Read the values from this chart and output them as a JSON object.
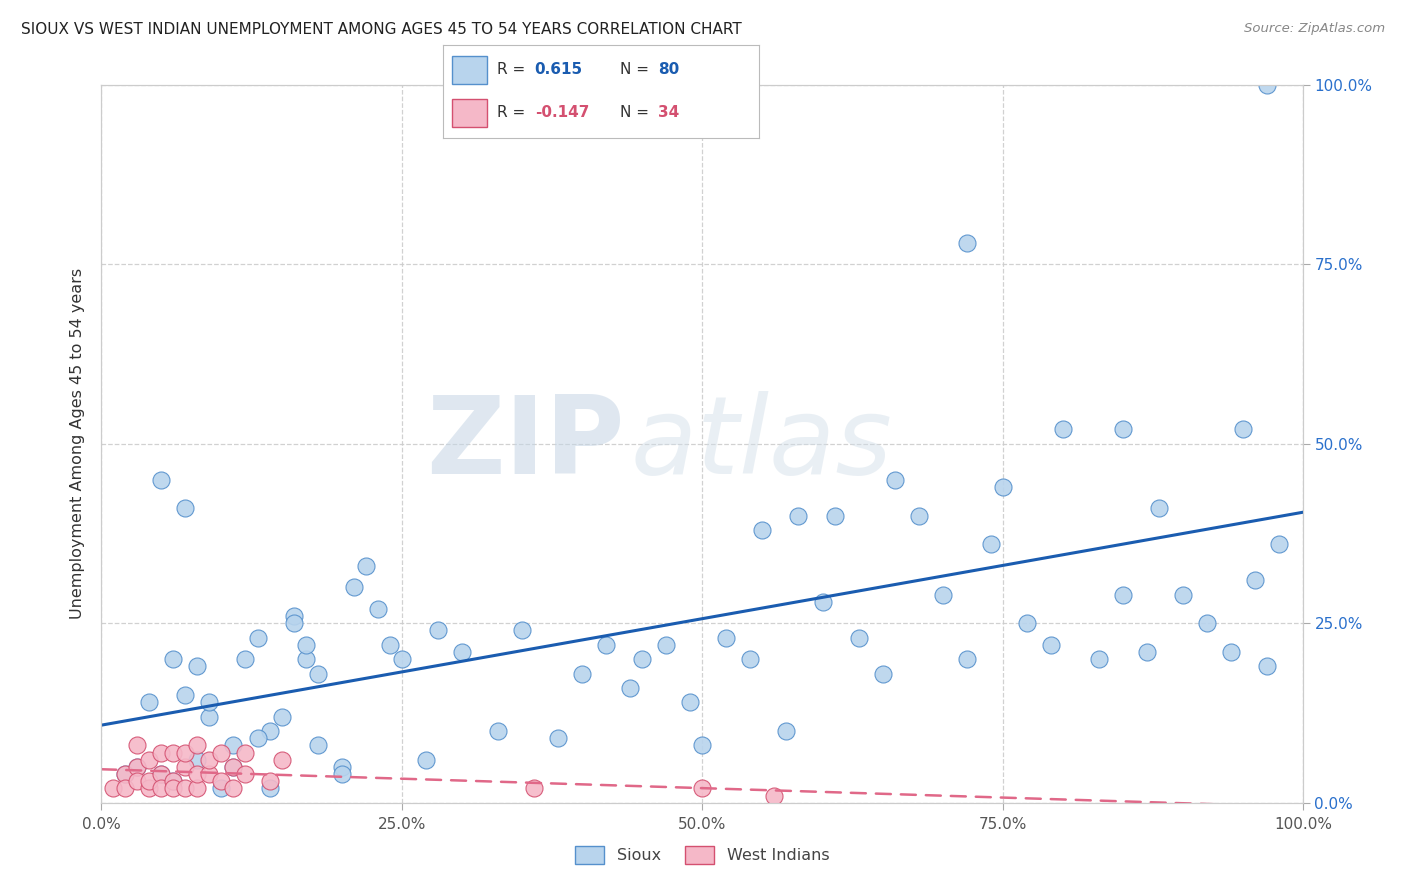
{
  "title": "SIOUX VS WEST INDIAN UNEMPLOYMENT AMONG AGES 45 TO 54 YEARS CORRELATION CHART",
  "source": "Source: ZipAtlas.com",
  "ylabel": "Unemployment Among Ages 45 to 54 years",
  "xlim": [
    0.0,
    1.0
  ],
  "ylim": [
    0.0,
    1.0
  ],
  "xticks": [
    0.0,
    0.25,
    0.5,
    0.75,
    1.0
  ],
  "yticks": [
    0.0,
    0.25,
    0.5,
    0.75,
    1.0
  ],
  "xticklabels": [
    "0.0%",
    "25.0%",
    "50.0%",
    "75.0%",
    "100.0%"
  ],
  "right_yticklabels": [
    "0.0%",
    "25.0%",
    "50.0%",
    "75.0%",
    "100.0%"
  ],
  "sioux_color": "#b8d4ed",
  "sioux_edge_color": "#5590cc",
  "west_indian_color": "#f5b8c8",
  "west_indian_edge_color": "#d45070",
  "sioux_line_color": "#1a5cb0",
  "west_indian_line_color": "#e06888",
  "legend_sioux_R": "0.615",
  "legend_sioux_N": "80",
  "legend_wi_R": "-0.147",
  "legend_wi_N": "34",
  "background_color": "#ffffff",
  "grid_color": "#cccccc",
  "title_color": "#222222",
  "right_tick_color": "#2a70cc",
  "sioux_x": [
    0.97,
    0.05,
    0.07,
    0.09,
    0.11,
    0.13,
    0.14,
    0.16,
    0.17,
    0.18,
    0.2,
    0.21,
    0.24,
    0.25,
    0.27,
    0.28,
    0.3,
    0.33,
    0.35,
    0.38,
    0.4,
    0.42,
    0.44,
    0.45,
    0.47,
    0.49,
    0.5,
    0.52,
    0.54,
    0.55,
    0.57,
    0.58,
    0.6,
    0.61,
    0.63,
    0.65,
    0.66,
    0.68,
    0.7,
    0.72,
    0.74,
    0.75,
    0.77,
    0.79,
    0.8,
    0.83,
    0.85,
    0.87,
    0.88,
    0.9,
    0.92,
    0.94,
    0.96,
    0.97,
    0.03,
    0.05,
    0.06,
    0.07,
    0.08,
    0.09,
    0.1,
    0.11,
    0.12,
    0.13,
    0.14,
    0.15,
    0.16,
    0.17,
    0.18,
    0.02,
    0.04,
    0.06,
    0.08,
    0.22,
    0.23,
    0.2,
    0.72,
    0.85,
    0.95,
    0.98
  ],
  "sioux_y": [
    1.0,
    0.45,
    0.41,
    0.12,
    0.08,
    0.23,
    0.1,
    0.26,
    0.2,
    0.18,
    0.05,
    0.3,
    0.22,
    0.2,
    0.06,
    0.24,
    0.21,
    0.1,
    0.24,
    0.09,
    0.18,
    0.22,
    0.16,
    0.2,
    0.22,
    0.14,
    0.08,
    0.23,
    0.2,
    0.38,
    0.1,
    0.4,
    0.28,
    0.4,
    0.23,
    0.18,
    0.45,
    0.4,
    0.29,
    0.2,
    0.36,
    0.44,
    0.25,
    0.22,
    0.52,
    0.2,
    0.29,
    0.21,
    0.41,
    0.29,
    0.25,
    0.21,
    0.31,
    0.19,
    0.05,
    0.04,
    0.2,
    0.15,
    0.06,
    0.14,
    0.02,
    0.05,
    0.2,
    0.09,
    0.02,
    0.12,
    0.25,
    0.22,
    0.08,
    0.04,
    0.14,
    0.03,
    0.19,
    0.33,
    0.27,
    0.04,
    0.78,
    0.52,
    0.52,
    0.36
  ],
  "west_indian_x": [
    0.01,
    0.02,
    0.02,
    0.03,
    0.03,
    0.03,
    0.04,
    0.04,
    0.04,
    0.05,
    0.05,
    0.05,
    0.06,
    0.06,
    0.06,
    0.07,
    0.07,
    0.07,
    0.08,
    0.08,
    0.08,
    0.09,
    0.09,
    0.1,
    0.1,
    0.11,
    0.11,
    0.12,
    0.12,
    0.14,
    0.15,
    0.36,
    0.5,
    0.56
  ],
  "west_indian_y": [
    0.02,
    0.04,
    0.02,
    0.05,
    0.03,
    0.08,
    0.02,
    0.06,
    0.03,
    0.04,
    0.07,
    0.02,
    0.03,
    0.07,
    0.02,
    0.05,
    0.07,
    0.02,
    0.02,
    0.08,
    0.04,
    0.04,
    0.06,
    0.03,
    0.07,
    0.05,
    0.02,
    0.04,
    0.07,
    0.03,
    0.06,
    0.02,
    0.02,
    0.01
  ]
}
